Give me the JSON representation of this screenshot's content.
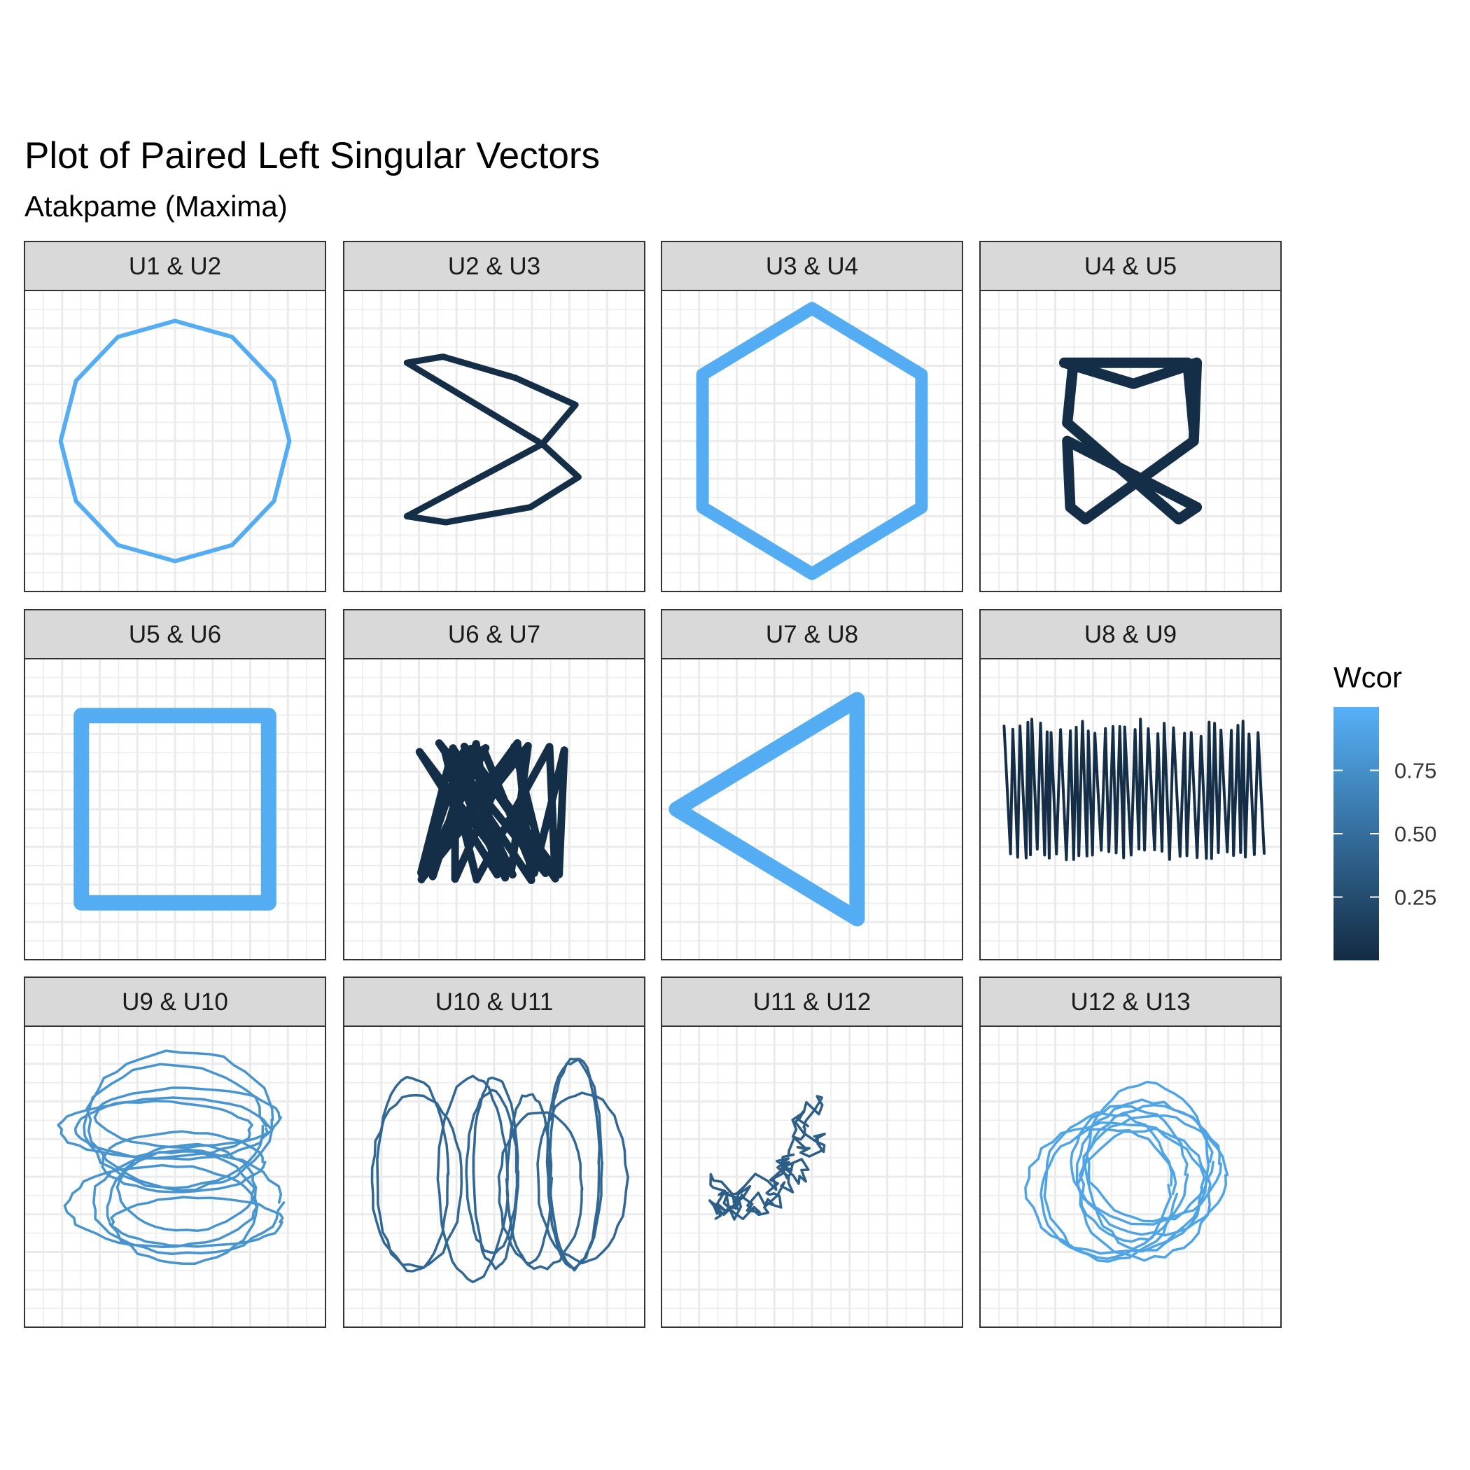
{
  "chart_data": {
    "type": "line",
    "title": "Plot of Paired Left Singular Vectors",
    "subtitle": "Atakpame (Maxima)",
    "legend": {
      "title": "Wcor",
      "ticks": [
        "0.25",
        "0.50",
        "0.75"
      ],
      "tick_values": [
        0.25,
        0.5,
        0.75
      ],
      "range": [
        0.0,
        1.0
      ],
      "color_low": "#132b43",
      "color_high": "#56b1f7",
      "placement": "right"
    },
    "grid": true,
    "facets": [
      {
        "label": "U1  &  U2",
        "wcor": 0.97,
        "shape": "polygon",
        "sides": 12,
        "radius": 0.38,
        "stroke": 6
      },
      {
        "label": "U2  &  U3",
        "wcor": 0.02,
        "shape": "bowtie",
        "stroke": 9
      },
      {
        "label": "U3  &  U4",
        "wcor": 0.97,
        "shape": "polygon",
        "sides": 6,
        "radius": 0.42,
        "stroke": 18
      },
      {
        "label": "U4  &  U5",
        "wcor": 0.02,
        "shape": "chair",
        "stroke": 15
      },
      {
        "label": "U5  &  U6",
        "wcor": 0.97,
        "shape": "polygon",
        "sides": 4,
        "radius": 0.44,
        "stroke": 22
      },
      {
        "label": "U6  &  U7",
        "wcor": 0.02,
        "shape": "hourglass",
        "stroke": 11
      },
      {
        "label": "U7  &  U8",
        "wcor": 0.97,
        "shape": "polygon",
        "sides": 3,
        "radius": 0.4,
        "stroke": 22
      },
      {
        "label": "U8  &  U9",
        "wcor": 0.02,
        "shape": "zigzag",
        "stroke": 4
      },
      {
        "label": "U9  &  U10",
        "wcor": 0.78,
        "shape": "loops",
        "seed": 9,
        "stroke": 3.5
      },
      {
        "label": "U10  &  U11",
        "wcor": 0.45,
        "shape": "ellipses",
        "seed": 10,
        "stroke": 3.5
      },
      {
        "label": "U11  &  U12",
        "wcor": 0.38,
        "shape": "scribble",
        "seed": 11,
        "stroke": 3.5
      },
      {
        "label": "U12  &  U13",
        "wcor": 0.9,
        "shape": "rings",
        "seed": 12,
        "stroke": 3.5
      }
    ]
  }
}
